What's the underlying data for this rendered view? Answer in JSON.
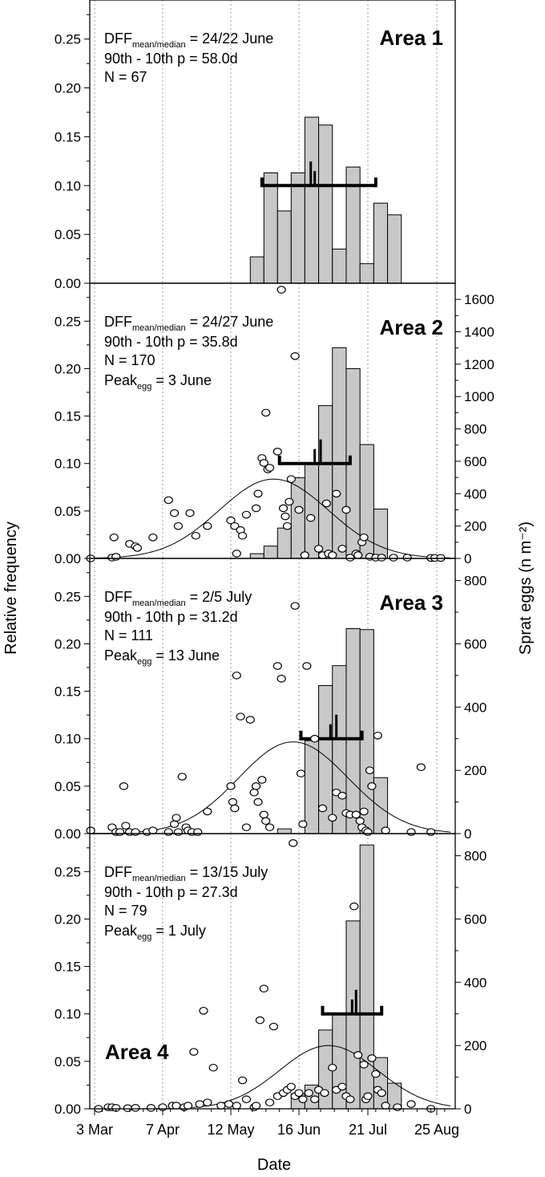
{
  "chart_data": {
    "type": "bar",
    "ylabel_left": "Relative frequency",
    "ylabel_right": "Sprat eggs (n m⁻²)",
    "xlabel": "Date",
    "x_ticks": [
      "3 Mar",
      "7 Apr",
      "12 May",
      "16 Jun",
      "21 Jul",
      "25 Aug"
    ],
    "panels": [
      {
        "area": "Area 1",
        "stats": {
          "dff_label": "DFF",
          "dff_sub": "mean/median",
          "dff": " = 24/22 June",
          "p90": "90th - 10th p   = 58.0d",
          "n": "N         = 67"
        },
        "ylim": [
          0,
          0.29
        ],
        "yticks": [
          "0.00",
          "0.05",
          "0.10",
          "0.15",
          "0.20",
          "0.25"
        ],
        "bars": [
          {
            "x": "22 May",
            "value": 0.027
          },
          {
            "x": "29 May",
            "value": 0.113
          },
          {
            "x": "5 Jun",
            "value": 0.074
          },
          {
            "x": "12 Jun",
            "value": 0.113
          },
          {
            "x": "19 Jun",
            "value": 0.17
          },
          {
            "x": "26 Jun",
            "value": 0.162
          },
          {
            "x": "3 Jul",
            "value": 0.035
          },
          {
            "x": "10 Jul",
            "value": 0.119
          },
          {
            "x": "17 Jul",
            "value": 0.02
          },
          {
            "x": "24 Jul",
            "value": 0.082
          },
          {
            "x": "31 Jul",
            "value": 0.07
          }
        ],
        "bracket": {
          "y": 0.1,
          "p10": "28 May",
          "p90": "25 Jul",
          "mean": "24 Jun",
          "median": "22 Jun"
        }
      },
      {
        "area": "Area 2",
        "stats": {
          "dff_label": "DFF",
          "dff_sub": "mean/median",
          "dff": " = 24/27 June",
          "p90": "90th - 10th p   = 35.8d",
          "n": "N         = 170",
          "peak_label": "Peak",
          "peak_sub": "egg",
          "peak": " = 3 June"
        },
        "ylim": [
          0,
          0.29
        ],
        "yticks": [
          "0.00",
          "0.05",
          "0.10",
          "0.15",
          "0.20",
          "0.25"
        ],
        "y2lim": [
          0,
          1700
        ],
        "y2ticks": [
          "0",
          "200",
          "400",
          "600",
          "800",
          "1000",
          "1200",
          "1400",
          "1600"
        ],
        "bars": [
          {
            "x": "22 May",
            "value": 0.005
          },
          {
            "x": "29 May",
            "value": 0.013
          },
          {
            "x": "5 Jun",
            "value": 0.032
          },
          {
            "x": "12 Jun",
            "value": 0.085
          },
          {
            "x": "19 Jun",
            "value": 0.1
          },
          {
            "x": "26 Jun",
            "value": 0.161
          },
          {
            "x": "3 Jul",
            "value": 0.222
          },
          {
            "x": "10 Jul",
            "value": 0.2
          },
          {
            "x": "17 Jul",
            "value": 0.12
          },
          {
            "x": "24 Jul",
            "value": 0.052
          }
        ],
        "bracket": {
          "y": 0.1,
          "p10": "6 Jun",
          "p90": "12 Jul",
          "mean": "24 Jun",
          "median": "27 Jun"
        },
        "curve": {
          "peak_date": "3 Jun",
          "peak_value": 490,
          "sd_days": 28
        },
        "eggs": [
          [
            "1 Mar",
            0
          ],
          [
            "12 Mar",
            5
          ],
          [
            "13 Mar",
            130
          ],
          [
            "14 Mar",
            10
          ],
          [
            "21 Mar",
            90
          ],
          [
            "24 Mar",
            75
          ],
          [
            "25 Mar",
            65
          ],
          [
            "2 Apr",
            130
          ],
          [
            "10 Apr",
            360
          ],
          [
            "13 Apr",
            280
          ],
          [
            "15 Apr",
            200
          ],
          [
            "21 Apr",
            280
          ],
          [
            "24 Apr",
            140
          ],
          [
            "30 Apr",
            200
          ],
          [
            "12 May",
            235
          ],
          [
            "14 May",
            200
          ],
          [
            "15 May",
            30
          ],
          [
            "17 May",
            175
          ],
          [
            "18 May",
            140
          ],
          [
            "20 May",
            270
          ],
          [
            "25 May",
            310
          ],
          [
            "26 May",
            400
          ],
          [
            "28 May",
            620
          ],
          [
            "29 May",
            590
          ],
          [
            "30 May",
            900
          ],
          [
            "31 May",
            550
          ],
          [
            "1 Jun",
            560
          ],
          [
            "5 Jun",
            660
          ],
          [
            "7 Jun",
            1660
          ],
          [
            "8 Jun",
            310
          ],
          [
            "9 Jun",
            260
          ],
          [
            "10 Jun",
            200
          ],
          [
            "11 Jun",
            350
          ],
          [
            "12 Jun",
            490
          ],
          [
            "14 Jun",
            1250
          ],
          [
            "16 Jun",
            300
          ],
          [
            "19 Jun",
            20
          ],
          [
            "22 Jun",
            250
          ],
          [
            "26 Jun",
            60
          ],
          [
            "28 Jun",
            20
          ],
          [
            "30 Jun",
            340
          ],
          [
            "1 Jul",
            30
          ],
          [
            "3 Jul",
            20
          ],
          [
            "5 Jul",
            400
          ],
          [
            "8 Jul",
            60
          ],
          [
            "10 Jul",
            300
          ],
          [
            "12 Jul",
            5
          ],
          [
            "15 Jul",
            30
          ],
          [
            "16 Jul",
            20
          ],
          [
            "18 Jul",
            100
          ],
          [
            "19 Jul",
            130
          ],
          [
            "22 Jul",
            10
          ],
          [
            "25 Jul",
            5
          ],
          [
            "28 Jul",
            5
          ],
          [
            "3 Aug",
            5
          ],
          [
            "10 Aug",
            5
          ],
          [
            "22 Aug",
            3
          ],
          [
            "24 Aug",
            3
          ],
          [
            "27 Aug",
            3
          ]
        ]
      },
      {
        "area": "Area 3",
        "stats": {
          "dff_label": "DFF",
          "dff_sub": "mean/median",
          "dff": " = 2/5 July",
          "p90": "90th - 10th p   = 31.2d",
          "n": "N         = 111",
          "peak_label": "Peak",
          "peak_sub": "egg",
          "peak": " = 13 June"
        },
        "ylim": [
          0,
          0.29
        ],
        "yticks": [
          "0.00",
          "0.05",
          "0.10",
          "0.15",
          "0.20",
          "0.25"
        ],
        "y2lim": [
          0,
          870
        ],
        "y2ticks": [
          "0",
          "200",
          "400",
          "600",
          "800"
        ],
        "bars": [
          {
            "x": "5 Jun",
            "value": 0.005
          },
          {
            "x": "19 Jun",
            "value": 0.098
          },
          {
            "x": "26 Jun",
            "value": 0.156
          },
          {
            "x": "3 Jul",
            "value": 0.177
          },
          {
            "x": "10 Jul",
            "value": 0.216
          },
          {
            "x": "17 Jul",
            "value": 0.215
          },
          {
            "x": "24 Jul",
            "value": 0.059
          }
        ],
        "bracket": {
          "y": 0.1,
          "p10": "17 Jun",
          "p90": "18 Jul",
          "mean": "2 Jul",
          "median": "5 Jul"
        },
        "curve": {
          "peak_date": "13 Jun",
          "peak_value": 290,
          "sd_days": 28
        },
        "eggs": [
          [
            "1 Mar",
            10
          ],
          [
            "12 Mar",
            20
          ],
          [
            "14 Mar",
            5
          ],
          [
            "16 Mar",
            5
          ],
          [
            "18 Mar",
            150
          ],
          [
            "19 Mar",
            25
          ],
          [
            "21 Mar",
            5
          ],
          [
            "24 Mar",
            5
          ],
          [
            "30 Mar",
            5
          ],
          [
            "2 Apr",
            10
          ],
          [
            "10 Apr",
            5
          ],
          [
            "13 Apr",
            30
          ],
          [
            "14 Apr",
            50
          ],
          [
            "15 Apr",
            5
          ],
          [
            "17 Apr",
            180
          ],
          [
            "19 Apr",
            20
          ],
          [
            "20 Apr",
            10
          ],
          [
            "22 Apr",
            5
          ],
          [
            "25 Apr",
            5
          ],
          [
            "30 Apr",
            70
          ],
          [
            "12 May",
            150
          ],
          [
            "13 May",
            100
          ],
          [
            "14 May",
            80
          ],
          [
            "15 May",
            500
          ],
          [
            "17 May",
            370
          ],
          [
            "20 May",
            20
          ],
          [
            "22 May",
            360
          ],
          [
            "24 May",
            130
          ],
          [
            "25 May",
            150
          ],
          [
            "26 May",
            100
          ],
          [
            "28 May",
            170
          ],
          [
            "29 May",
            60
          ],
          [
            "30 May",
            40
          ],
          [
            "1 Jun",
            20
          ],
          [
            "5 Jun",
            530
          ],
          [
            "7 Jun",
            490
          ],
          [
            "14 Jun",
            720
          ],
          [
            "17 Jun",
            190
          ],
          [
            "18 Jun",
            30
          ],
          [
            "20 Jun",
            530
          ],
          [
            "24 Jun",
            300
          ],
          [
            "28 Jun",
            80
          ],
          [
            "3 Jul",
            50
          ],
          [
            "5 Jul",
            130
          ],
          [
            "8 Jul",
            120
          ],
          [
            "10 Jul",
            65
          ],
          [
            "12 Jul",
            60
          ],
          [
            "15 Jul",
            60
          ],
          [
            "17 Jul",
            40
          ],
          [
            "18 Jul",
            20
          ],
          [
            "19 Jul",
            70
          ],
          [
            "20 Jul",
            10
          ],
          [
            "21 Jul",
            5
          ],
          [
            "22 Jul",
            200
          ],
          [
            "23 Jul",
            150
          ],
          [
            "26 Jul",
            310
          ],
          [
            "30 Jul",
            10
          ],
          [
            "12 Aug",
            5
          ],
          [
            "17 Aug",
            210
          ],
          [
            "22 Aug",
            5
          ]
        ]
      },
      {
        "area": "Area 4",
        "stats": {
          "dff_label": "DFF",
          "dff_sub": "mean/median",
          "dff": " = 13/15 July",
          "p90": "90th - 10th p   = 27.3d",
          "n": "N         = 79",
          "peak_label": "Peak",
          "peak_sub": "egg",
          "peak": " = 1 July"
        },
        "ylim": [
          0,
          0.29
        ],
        "yticks": [
          "0.00",
          "0.05",
          "0.10",
          "0.15",
          "0.20",
          "0.25"
        ],
        "y2lim": [
          0,
          870
        ],
        "y2ticks": [
          "0",
          "200",
          "400",
          "600",
          "800"
        ],
        "bars": [
          {
            "x": "12 Jun",
            "value": 0.016
          },
          {
            "x": "19 Jun",
            "value": 0.025
          },
          {
            "x": "26 Jun",
            "value": 0.083
          },
          {
            "x": "3 Jul",
            "value": 0.1
          },
          {
            "x": "10 Jul",
            "value": 0.198
          },
          {
            "x": "17 Jul",
            "value": 0.278
          },
          {
            "x": "24 Jul",
            "value": 0.054
          },
          {
            "x": "31 Jul",
            "value": 0.027
          }
        ],
        "bracket": {
          "y": 0.1,
          "p10": "28 Jun",
          "p90": "28 Jul",
          "mean": "13 Jul",
          "median": "15 Jul"
        },
        "curve": {
          "peak_date": "1 Jul",
          "peak_value": 200,
          "sd_days": 25
        },
        "eggs": [
          [
            "5 Mar",
            0
          ],
          [
            "10 Mar",
            5
          ],
          [
            "12 Mar",
            5
          ],
          [
            "14 Mar",
            3
          ],
          [
            "20 Mar",
            2
          ],
          [
            "24 Mar",
            3
          ],
          [
            "1 Apr",
            3
          ],
          [
            "7 Apr",
            5
          ],
          [
            "12 Apr",
            10
          ],
          [
            "14 Apr",
            10
          ],
          [
            "18 Apr",
            5
          ],
          [
            "20 Apr",
            10
          ],
          [
            "23 Apr",
            180
          ],
          [
            "26 Apr",
            15
          ],
          [
            "28 Apr",
            310
          ],
          [
            "30 Apr",
            20
          ],
          [
            "3 May",
            130
          ],
          [
            "7 May",
            10
          ],
          [
            "11 May",
            15
          ],
          [
            "15 May",
            10
          ],
          [
            "18 May",
            90
          ],
          [
            "20 May",
            30
          ],
          [
            "24 May",
            5
          ],
          [
            "25 May",
            10
          ],
          [
            "27 May",
            280
          ],
          [
            "29 May",
            380
          ],
          [
            "1 Jun",
            20
          ],
          [
            "3 Jun",
            260
          ],
          [
            "5 Jun",
            40
          ],
          [
            "8 Jun",
            50
          ],
          [
            "10 Jun",
            60
          ],
          [
            "12 Jun",
            70
          ],
          [
            "13 Jun",
            840
          ],
          [
            "14 Jun",
            40
          ],
          [
            "16 Jun",
            50
          ],
          [
            "18 Jun",
            30
          ],
          [
            "21 Jun",
            50
          ],
          [
            "24 Jun",
            30
          ],
          [
            "26 Jun",
            60
          ],
          [
            "29 Jun",
            50
          ],
          [
            "3 Jul",
            130
          ],
          [
            "5 Jul",
            60
          ],
          [
            "8 Jul",
            70
          ],
          [
            "10 Jul",
            40
          ],
          [
            "12 Jul",
            30
          ],
          [
            "14 Jul",
            640
          ],
          [
            "16 Jul",
            170
          ],
          [
            "19 Jul",
            140
          ],
          [
            "20 Jul",
            30
          ],
          [
            "21 Jul",
            40
          ],
          [
            "23 Jul",
            160
          ],
          [
            "25 Jul",
            110
          ],
          [
            "26 Jul",
            60
          ],
          [
            "28 Jul",
            50
          ],
          [
            "30 Jul",
            10
          ],
          [
            "5 Aug",
            5
          ],
          [
            "12 Aug",
            15
          ],
          [
            "22 Aug",
            0
          ]
        ]
      }
    ]
  }
}
